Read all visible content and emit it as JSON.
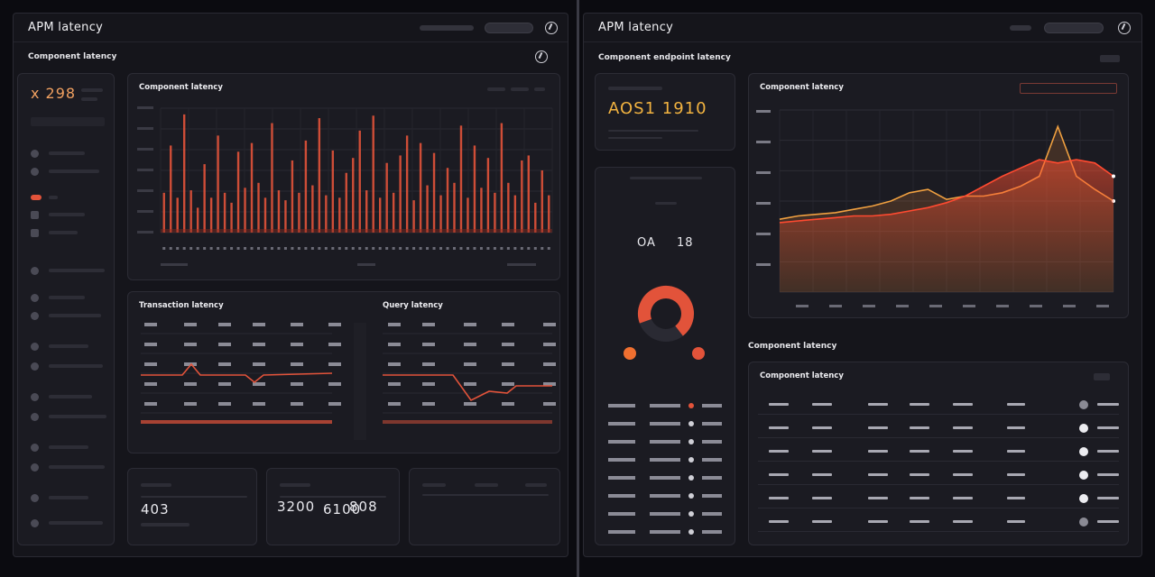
{
  "colors": {
    "accent": "#e2533a",
    "accent_dark": "#8a2a1f",
    "panel": "#1b1b22",
    "line": "#f0a040"
  },
  "left": {
    "app_title": "APM latency",
    "subtitle": "Component latency",
    "stat": {
      "value": "x 298"
    },
    "sidebar": {
      "items": [
        {
          "icon": "circle-icon"
        },
        {
          "icon": "gear-icon"
        },
        {
          "icon": "flag-icon"
        },
        {
          "icon": "square-icon"
        },
        {
          "icon": "layers-icon"
        }
      ]
    },
    "bar_panel": {
      "title": "Component latency"
    },
    "table1": {
      "title": "Transaction latency"
    },
    "table2": {
      "title": "Query latency"
    },
    "cards": [
      {
        "value": "403"
      },
      {
        "value": "6100"
      },
      {
        "value": "3200"
      },
      {
        "value": "808"
      }
    ]
  },
  "right": {
    "app_title": "APM latency",
    "subtitle": "Component endpoint latency",
    "kpi": {
      "value": "AOS1 1910"
    },
    "donut_center": {
      "left": "OA",
      "right": "18"
    },
    "area_panel": {
      "title": "Component latency"
    },
    "section_title": "Component latency",
    "table_title": "Component latency"
  },
  "chart_data": [
    {
      "type": "bar",
      "title": "Component latency",
      "values": [
        32,
        70,
        28,
        95,
        34,
        20,
        55,
        28,
        78,
        32,
        24,
        65,
        36,
        72,
        40,
        28,
        88,
        34,
        26,
        58,
        32,
        74,
        38,
        92,
        30,
        66,
        28,
        48,
        60,
        82,
        34,
        94,
        28,
        56,
        32,
        62,
        78,
        26,
        72,
        38,
        64,
        30,
        52,
        40,
        86,
        28,
        70,
        36,
        60,
        32,
        88,
        40,
        30,
        58,
        62,
        24,
        50,
        30
      ],
      "ylim": [
        0,
        100
      ]
    },
    {
      "type": "area",
      "title": "Component latency",
      "series": [
        {
          "values": [
            44,
            46,
            47,
            48,
            50,
            52,
            55,
            60,
            62,
            56,
            58,
            58,
            60,
            64,
            70,
            100,
            70,
            62,
            55
          ]
        },
        {
          "values": [
            42,
            43,
            44,
            45,
            46,
            46,
            47,
            49,
            51,
            54,
            58,
            64,
            70,
            75,
            80,
            78,
            80,
            78,
            70
          ]
        }
      ],
      "ylim": [
        0,
        110
      ]
    }
  ]
}
